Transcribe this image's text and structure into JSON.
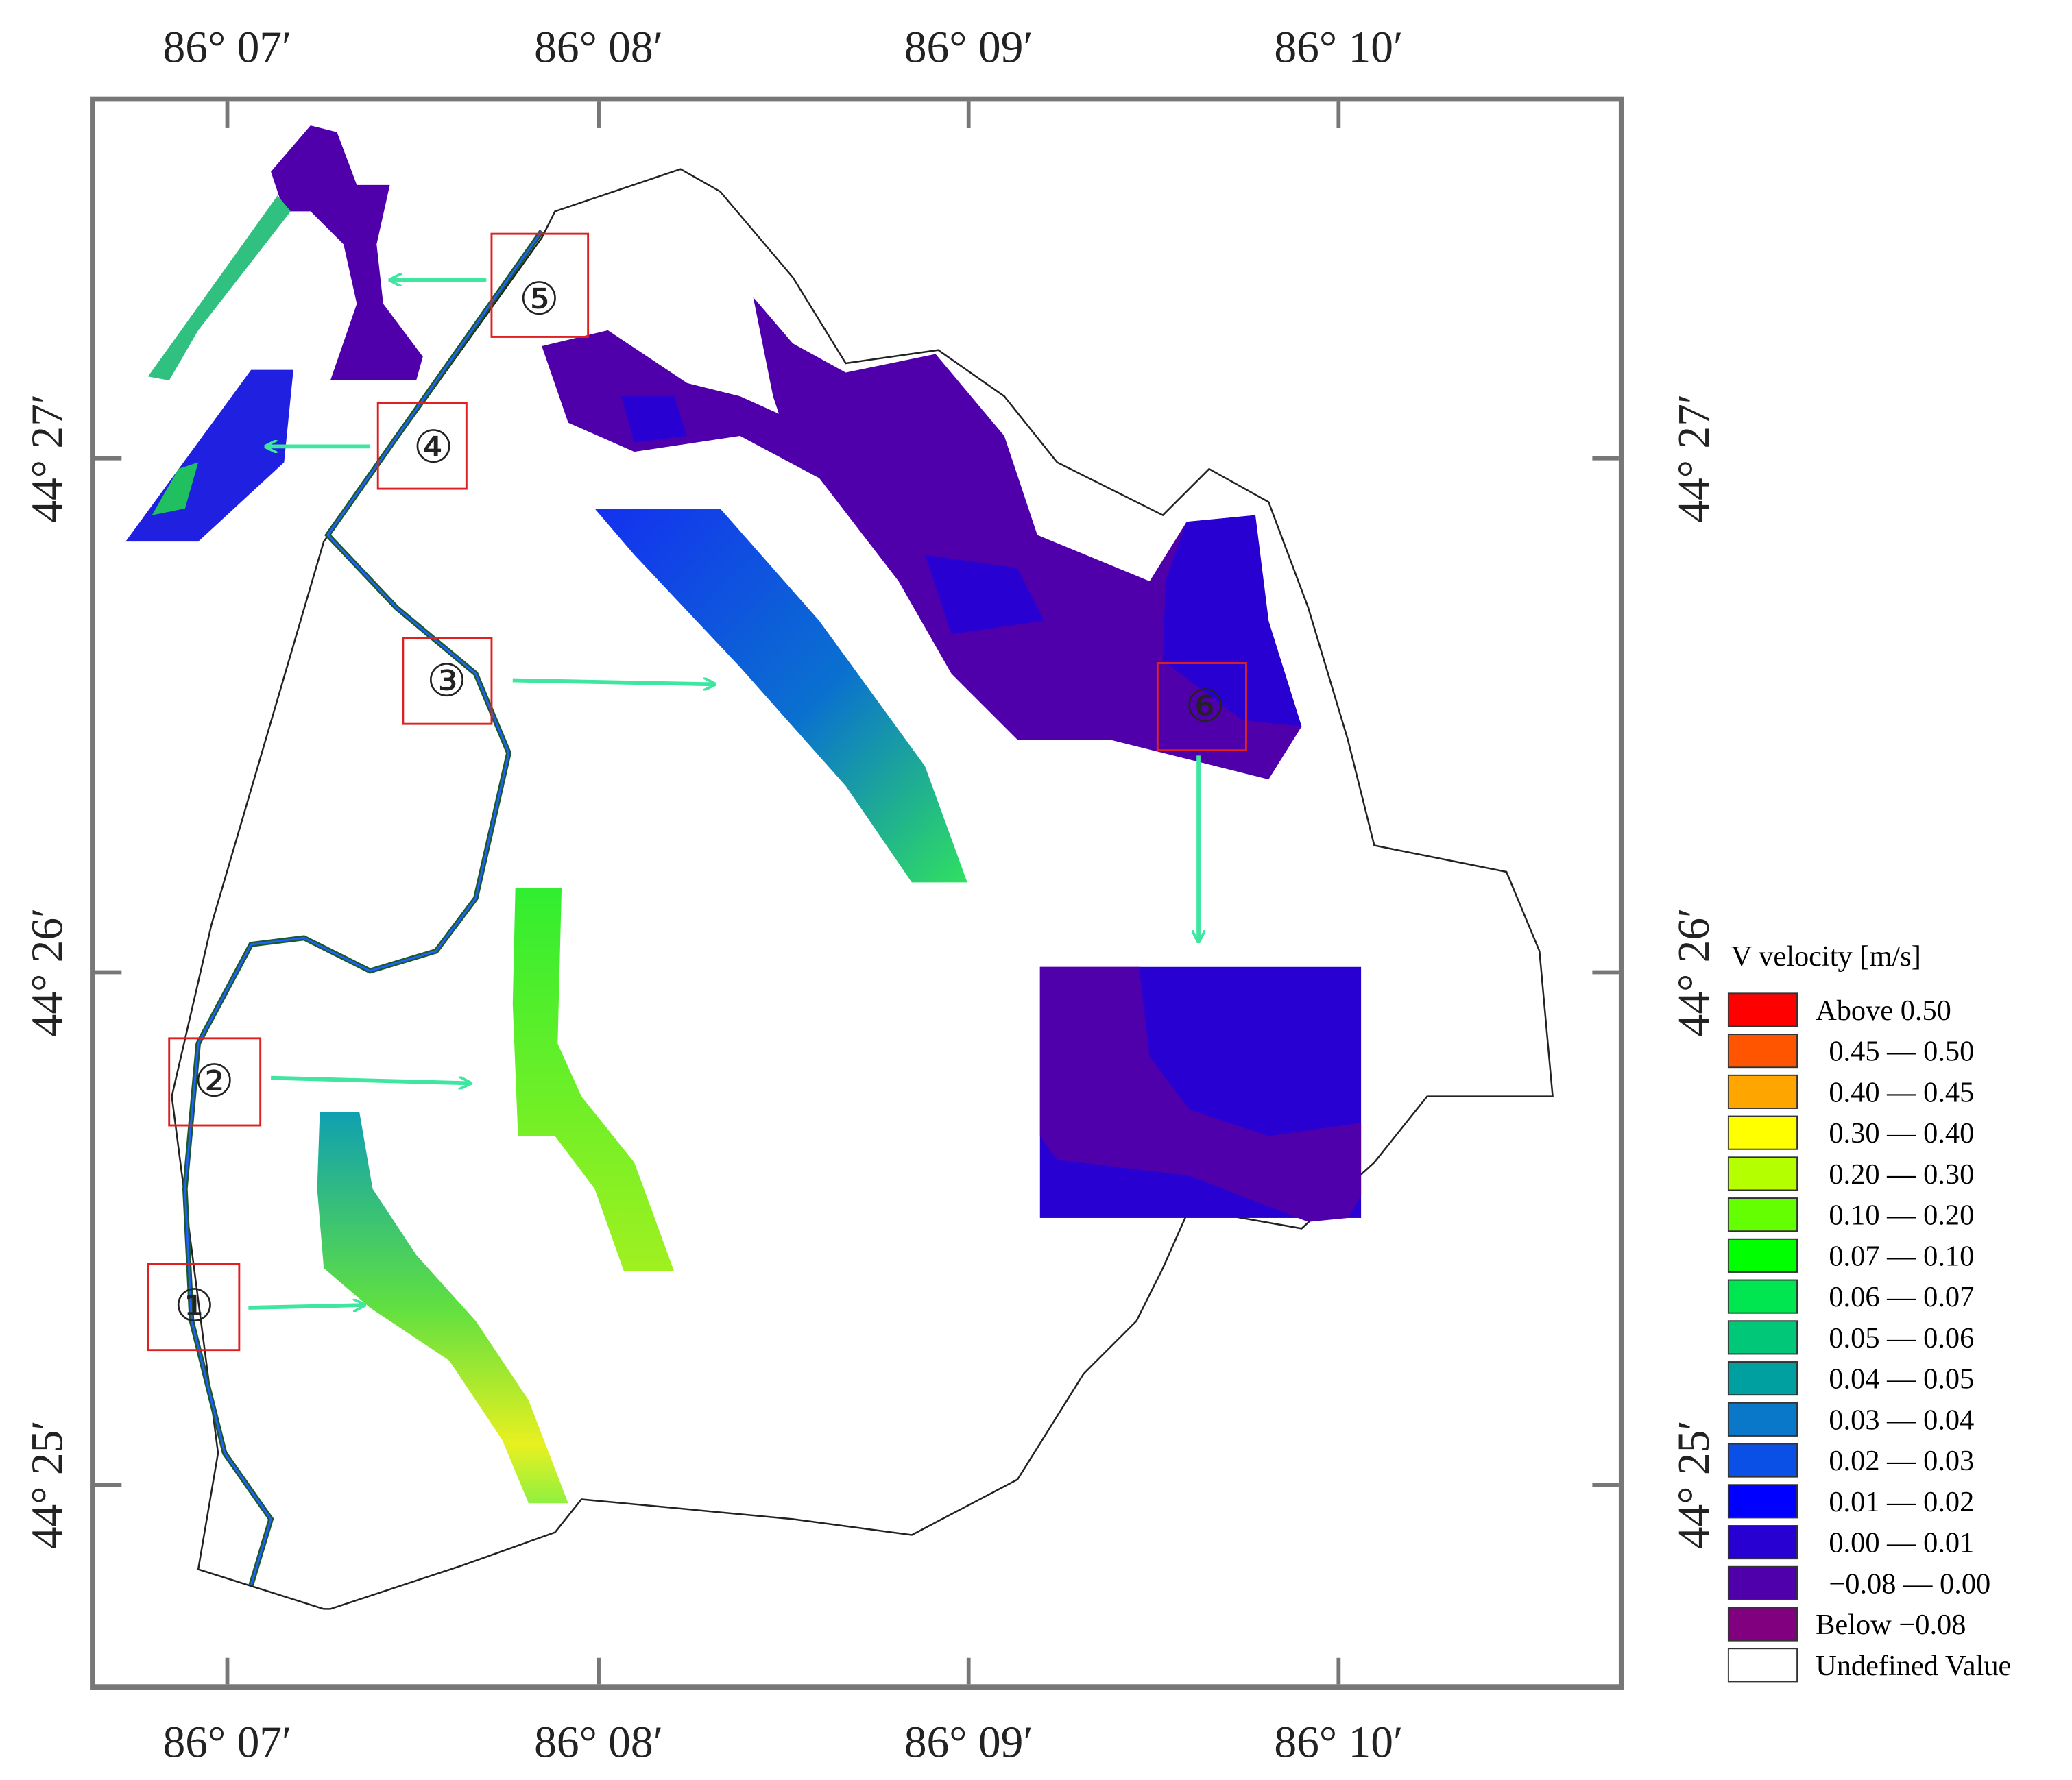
{
  "map": {
    "longitude_labels": [
      "86° 07′",
      "86° 08′",
      "86° 09′",
      "86° 10′"
    ],
    "latitude_labels": [
      "44° 27′",
      "44° 26′",
      "44° 25′"
    ],
    "zones": [
      "①",
      "②",
      "③",
      "④",
      "⑤",
      "⑥"
    ],
    "legend": {
      "title": "V velocity [m/s]",
      "entries": [
        {
          "label": "Above  0.50",
          "color": "#ff0000"
        },
        {
          "label": "0.45 — 0.50",
          "color": "#ff5500"
        },
        {
          "label": "0.40 — 0.45",
          "color": "#ffa500"
        },
        {
          "label": "0.30 — 0.40",
          "color": "#ffff00"
        },
        {
          "label": "0.20 — 0.30",
          "color": "#b4ff00"
        },
        {
          "label": "0.10 — 0.20",
          "color": "#64ff00"
        },
        {
          "label": "0.07 — 0.10",
          "color": "#00ff00"
        },
        {
          "label": "0.06 — 0.07",
          "color": "#00e650"
        },
        {
          "label": "0.05 — 0.06",
          "color": "#00c878"
        },
        {
          "label": "0.04 — 0.05",
          "color": "#00a0a0"
        },
        {
          "label": "0.03 — 0.04",
          "color": "#0a78c8"
        },
        {
          "label": "0.02 — 0.03",
          "color": "#0a50e6"
        },
        {
          "label": "0.01 — 0.02",
          "color": "#0000ff"
        },
        {
          "label": "0.00 — 0.01",
          "color": "#2800d2"
        },
        {
          "label": "−0.08 — 0.00",
          "color": "#5000aa"
        },
        {
          "label": "Below −0.08",
          "color": "#800080"
        },
        {
          "label": "Undefined Value",
          "color": "#ffffff"
        }
      ]
    }
  }
}
